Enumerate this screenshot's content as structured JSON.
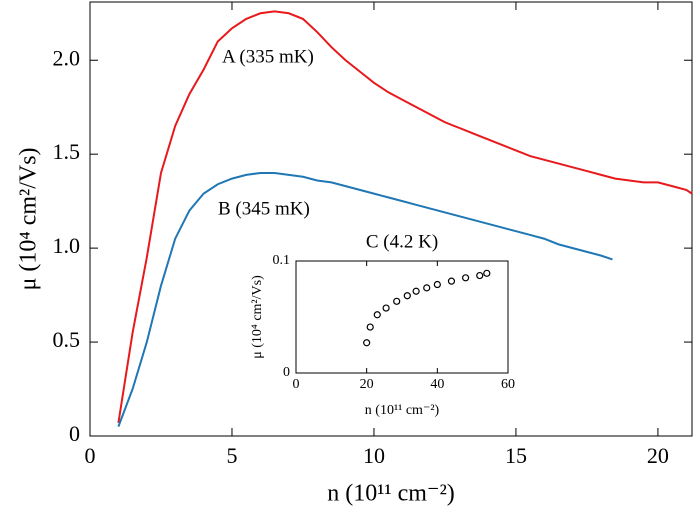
{
  "chart_data": [
    {
      "type": "line",
      "x_label": "n (10¹¹ cm⁻²)",
      "y_label": "μ (10⁴ cm²/Vs)",
      "xlim": [
        0,
        21.2
      ],
      "ylim": [
        0,
        2.31
      ],
      "xticks": [
        0,
        5,
        10,
        15,
        20
      ],
      "yticks": [
        0,
        0.5,
        {
          "value": 1,
          "label": "1.0"
        },
        1.5,
        {
          "value": 2,
          "label": "2.0"
        }
      ],
      "series": [
        {
          "name": "A (335 mK)",
          "color": "#e8191c",
          "x": [
            1,
            1.5,
            2,
            2.5,
            3,
            3.5,
            4,
            4.5,
            5,
            5.5,
            6,
            6.5,
            7,
            7.5,
            8,
            8.5,
            9,
            9.5,
            10,
            10.5,
            11,
            11.5,
            12,
            12.5,
            13,
            13.5,
            14,
            14.5,
            15,
            15.5,
            16,
            16.5,
            17,
            17.5,
            18,
            18.5,
            19,
            19.5,
            20,
            20.5,
            21,
            21.2
          ],
          "values": [
            0.07,
            0.55,
            0.95,
            1.4,
            1.65,
            1.82,
            1.95,
            2.1,
            2.17,
            2.22,
            2.25,
            2.26,
            2.25,
            2.22,
            2.15,
            2.07,
            2.0,
            1.94,
            1.88,
            1.83,
            1.79,
            1.75,
            1.71,
            1.67,
            1.64,
            1.61,
            1.58,
            1.55,
            1.52,
            1.49,
            1.47,
            1.45,
            1.43,
            1.41,
            1.39,
            1.37,
            1.36,
            1.35,
            1.35,
            1.33,
            1.31,
            1.29
          ]
        },
        {
          "name": "B (345 mK)",
          "color": "#1f77b4",
          "x": [
            1,
            1.5,
            2,
            2.5,
            3,
            3.5,
            4,
            4.5,
            5,
            5.5,
            6,
            6.5,
            7,
            7.5,
            8,
            8.5,
            9,
            9.5,
            10,
            10.5,
            11,
            11.5,
            12,
            12.5,
            13,
            13.5,
            14,
            14.5,
            15,
            15.5,
            16,
            16.5,
            17,
            17.5,
            18,
            18.4
          ],
          "values": [
            0.05,
            0.25,
            0.5,
            0.8,
            1.05,
            1.2,
            1.29,
            1.34,
            1.37,
            1.39,
            1.4,
            1.4,
            1.39,
            1.38,
            1.36,
            1.35,
            1.33,
            1.31,
            1.29,
            1.27,
            1.25,
            1.23,
            1.21,
            1.19,
            1.17,
            1.15,
            1.13,
            1.11,
            1.09,
            1.07,
            1.05,
            1.02,
            1.0,
            0.98,
            0.96,
            0.94
          ]
        }
      ]
    },
    {
      "type": "scatter",
      "title": "C (4.2 K)",
      "x_label": "n (10¹¹ cm⁻²)",
      "y_label": "μ (10⁴ cm²/Vs)",
      "xlim": [
        0,
        60
      ],
      "ylim": [
        0,
        0.1
      ],
      "xticks": [
        0,
        20,
        40,
        60
      ],
      "yticks": [
        0,
        0.1
      ],
      "x": [
        20,
        21,
        23,
        25.5,
        28.5,
        31.5,
        34,
        37,
        40,
        44,
        48,
        52,
        54
      ],
      "values": [
        0.027,
        0.041,
        0.052,
        0.058,
        0.064,
        0.069,
        0.073,
        0.076,
        0.079,
        0.082,
        0.085,
        0.087,
        0.089
      ]
    }
  ]
}
